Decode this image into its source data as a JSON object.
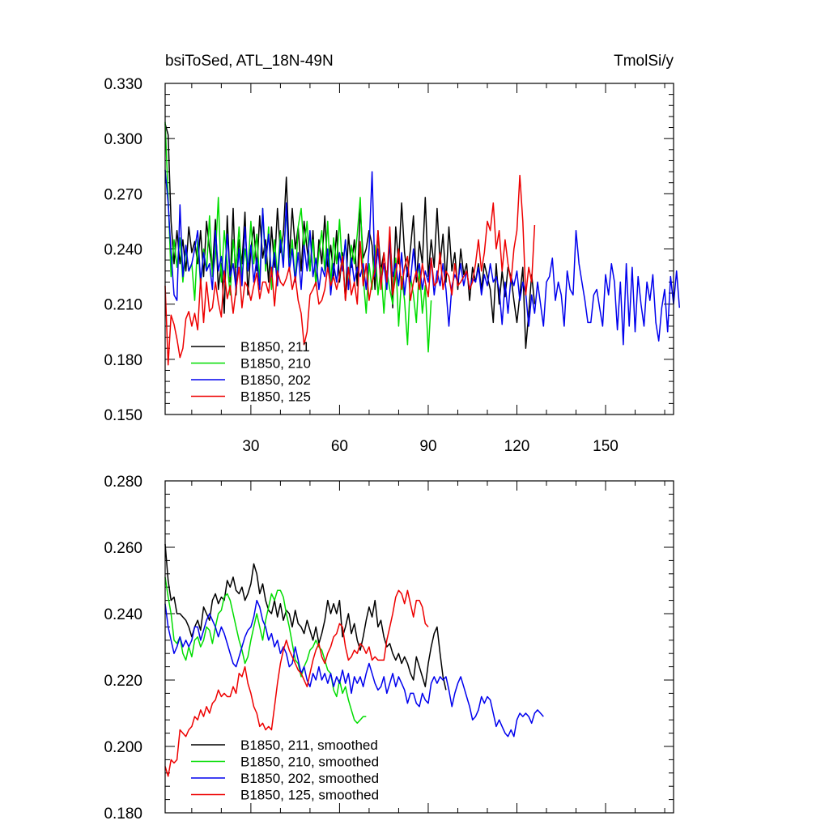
{
  "chart_data": [
    {
      "type": "line",
      "panel": "top",
      "title_left": "bsiToSed, ATL_18N-49N",
      "title_right": "TmolSi/y",
      "xlim": [
        1,
        173
      ],
      "ylim": [
        0.15,
        0.33
      ],
      "x_tick_labels": [
        "30",
        "60",
        "90",
        "120",
        "150"
      ],
      "x_ticks": [
        30,
        60,
        90,
        120,
        150
      ],
      "y_tick_labels": [
        "0.150",
        "0.180",
        "0.210",
        "0.240",
        "0.270",
        "0.300",
        "0.330"
      ],
      "y_ticks": [
        0.15,
        0.18,
        0.21,
        0.24,
        0.27,
        0.3,
        0.33
      ],
      "legend_position": "bottom-left",
      "series": [
        {
          "name": "B1850, 211",
          "color": "#000000",
          "values": [
            0.308,
            0.302,
            0.255,
            0.232,
            0.25,
            0.232,
            0.245,
            0.228,
            0.252,
            0.238,
            0.244,
            0.232,
            0.25,
            0.225,
            0.255,
            0.24,
            0.228,
            0.256,
            0.218,
            0.232,
            0.205,
            0.258,
            0.222,
            0.262,
            0.215,
            0.245,
            0.232,
            0.26,
            0.215,
            0.24,
            0.252,
            0.228,
            0.258,
            0.235,
            0.245,
            0.222,
            0.252,
            0.23,
            0.262,
            0.238,
            0.248,
            0.279,
            0.235,
            0.262,
            0.24,
            0.252,
            0.228,
            0.255,
            0.24,
            0.228,
            0.25,
            0.22,
            0.245,
            0.232,
            0.258,
            0.228,
            0.242,
            0.225,
            0.25,
            0.222,
            0.238,
            0.212,
            0.248,
            0.23,
            0.245,
            0.22,
            0.262,
            0.235,
            0.24,
            0.25,
            0.242,
            0.218,
            0.25,
            0.228,
            0.238,
            0.222,
            0.245,
            0.208,
            0.252,
            0.232,
            0.265,
            0.238,
            0.225,
            0.24,
            0.258,
            0.222,
            0.244,
            0.232,
            0.268,
            0.225,
            0.245,
            0.23,
            0.262,
            0.232,
            0.248,
            0.222,
            0.252,
            0.228,
            0.238,
            0.218,
            0.24,
            0.226,
            0.232,
            0.212,
            0.23,
            0.222,
            0.232,
            0.218,
            0.232,
            0.225,
            0.218,
            0.2,
            0.232,
            0.21,
            0.228,
            0.214,
            0.23,
            0.225,
            0.212,
            0.2,
            0.215,
            0.23,
            0.186,
            0.205,
            0.226,
            0.21
          ]
        },
        {
          "name": "B1850, 210",
          "color": "#00dd00",
          "values": [
            0.309,
            0.268,
            0.225,
            0.245,
            0.23,
            0.246,
            0.222,
            0.24,
            0.228,
            0.232,
            0.212,
            0.245,
            0.22,
            0.24,
            0.228,
            0.258,
            0.225,
            0.236,
            0.268,
            0.222,
            0.25,
            0.232,
            0.215,
            0.245,
            0.23,
            0.252,
            0.225,
            0.24,
            0.228,
            0.255,
            0.232,
            0.248,
            0.222,
            0.262,
            0.228,
            0.252,
            0.218,
            0.245,
            0.225,
            0.25,
            0.232,
            0.262,
            0.23,
            0.245,
            0.222,
            0.252,
            0.262,
            0.24,
            0.255,
            0.228,
            0.245,
            0.22,
            0.238,
            0.25,
            0.228,
            0.255,
            0.22,
            0.246,
            0.232,
            0.256,
            0.228,
            0.245,
            0.218,
            0.242,
            0.232,
            0.248,
            0.268,
            0.225,
            0.205,
            0.232,
            0.218,
            0.242,
            0.215,
            0.23,
            0.205,
            0.228,
            0.218,
            0.21,
            0.235,
            0.198,
            0.225,
            0.212,
            0.188,
            0.225,
            0.215,
            0.2,
            0.23,
            0.205,
            0.22,
            0.184,
            0.212
          ]
        },
        {
          "name": "B1850, 202",
          "color": "#0000ee",
          "values": [
            0.283,
            0.265,
            0.238,
            0.215,
            0.212,
            0.264,
            0.225,
            0.242,
            0.228,
            0.232,
            0.24,
            0.25,
            0.222,
            0.238,
            0.228,
            0.232,
            0.218,
            0.25,
            0.228,
            0.236,
            0.222,
            0.248,
            0.225,
            0.232,
            0.218,
            0.24,
            0.22,
            0.252,
            0.228,
            0.242,
            0.222,
            0.235,
            0.218,
            0.262,
            0.232,
            0.248,
            0.225,
            0.238,
            0.22,
            0.245,
            0.23,
            0.265,
            0.228,
            0.24,
            0.222,
            0.238,
            0.218,
            0.242,
            0.228,
            0.25,
            0.225,
            0.235,
            0.218,
            0.23,
            0.225,
            0.24,
            0.215,
            0.232,
            0.222,
            0.238,
            0.228,
            0.245,
            0.218,
            0.235,
            0.222,
            0.23,
            0.225,
            0.232,
            0.218,
            0.24,
            0.282,
            0.225,
            0.24,
            0.222,
            0.232,
            0.218,
            0.245,
            0.225,
            0.232,
            0.22,
            0.238,
            0.215,
            0.23,
            0.222,
            0.24,
            0.225,
            0.232,
            0.218,
            0.228,
            0.222,
            0.235,
            0.215,
            0.228,
            0.22,
            0.232,
            0.218,
            0.198,
            0.22,
            0.226,
            0.222,
            0.232,
            0.22,
            0.228,
            0.218,
            0.224,
            0.222,
            0.23,
            0.215,
            0.226,
            0.22,
            0.232,
            0.222,
            0.225,
            0.218,
            0.199,
            0.222,
            0.205,
            0.225,
            0.22,
            0.228,
            0.212,
            0.222,
            0.216,
            0.198,
            0.215,
            0.205,
            0.222,
            0.21,
            0.198,
            0.222,
            0.225,
            0.235,
            0.212,
            0.222,
            0.215,
            0.198,
            0.228,
            0.218,
            0.215,
            0.25,
            0.232,
            0.222,
            0.212,
            0.2,
            0.2,
            0.215,
            0.218,
            0.208,
            0.198,
            0.226,
            0.215,
            0.232,
            0.222,
            0.196,
            0.222,
            0.188,
            0.232,
            0.198,
            0.23,
            0.195,
            0.225,
            0.21,
            0.198,
            0.222,
            0.212,
            0.226,
            0.2,
            0.19,
            0.208,
            0.218,
            0.195,
            0.225,
            0.21,
            0.228,
            0.208
          ]
        },
        {
          "name": "B1850, 125",
          "color": "#ee0000",
          "values": [
            0.22,
            0.177,
            0.204,
            0.199,
            0.191,
            0.181,
            0.186,
            0.202,
            0.206,
            0.198,
            0.205,
            0.196,
            0.224,
            0.2,
            0.222,
            0.206,
            0.208,
            0.222,
            0.211,
            0.203,
            0.228,
            0.213,
            0.22,
            0.205,
            0.218,
            0.23,
            0.208,
            0.222,
            0.219,
            0.212,
            0.22,
            0.227,
            0.213,
            0.222,
            0.222,
            0.216,
            0.23,
            0.209,
            0.228,
            0.222,
            0.22,
            0.224,
            0.23,
            0.218,
            0.225,
            0.212,
            0.205,
            0.188,
            0.195,
            0.215,
            0.218,
            0.222,
            0.21,
            0.212,
            0.218,
            0.23,
            0.22,
            0.225,
            0.218,
            0.225,
            0.236,
            0.212,
            0.23,
            0.215,
            0.222,
            0.21,
            0.244,
            0.22,
            0.232,
            0.212,
            0.222,
            0.228,
            0.25,
            0.218,
            0.238,
            0.222,
            0.252,
            0.215,
            0.225,
            0.24,
            0.218,
            0.23,
            0.236,
            0.212,
            0.222,
            0.228,
            0.218,
            0.232,
            0.222,
            0.214,
            0.235,
            0.22,
            0.222,
            0.238,
            0.218,
            0.228,
            0.225,
            0.215,
            0.232,
            0.22,
            0.222,
            0.225,
            0.228,
            0.218,
            0.222,
            0.232,
            0.245,
            0.228,
            0.238,
            0.255,
            0.25,
            0.265,
            0.24,
            0.25,
            0.228,
            0.245,
            0.232,
            0.222,
            0.24,
            0.25,
            0.28,
            0.255,
            0.215,
            0.23,
            0.222,
            0.253
          ]
        }
      ]
    },
    {
      "type": "line",
      "panel": "bottom",
      "xlim": [
        1,
        173
      ],
      "ylim": [
        0.18,
        0.28
      ],
      "x_ticks": [
        30,
        60,
        90,
        120,
        150
      ],
      "y_tick_labels": [
        "0.180",
        "0.200",
        "0.220",
        "0.240",
        "0.260",
        "0.280"
      ],
      "y_ticks": [
        0.18,
        0.2,
        0.22,
        0.24,
        0.26,
        0.28
      ],
      "legend_position": "bottom-left",
      "series": [
        {
          "name": "B1850, 211, smoothed",
          "color": "#000000",
          "values": [
            0.261,
            0.25,
            0.244,
            0.245,
            0.24,
            0.24,
            0.239,
            0.238,
            0.236,
            0.233,
            0.236,
            0.238,
            0.235,
            0.242,
            0.24,
            0.238,
            0.244,
            0.246,
            0.243,
            0.245,
            0.244,
            0.25,
            0.248,
            0.251,
            0.247,
            0.246,
            0.248,
            0.244,
            0.246,
            0.249,
            0.255,
            0.252,
            0.246,
            0.249,
            0.244,
            0.241,
            0.24,
            0.244,
            0.239,
            0.243,
            0.238,
            0.241,
            0.24,
            0.236,
            0.241,
            0.237,
            0.236,
            0.234,
            0.238,
            0.235,
            0.232,
            0.236,
            0.231,
            0.234,
            0.238,
            0.244,
            0.24,
            0.243,
            0.24,
            0.244,
            0.233,
            0.236,
            0.24,
            0.234,
            0.237,
            0.232,
            0.229,
            0.233,
            0.238,
            0.242,
            0.239,
            0.244,
            0.236,
            0.238,
            0.233,
            0.23,
            0.231,
            0.228,
            0.226,
            0.228,
            0.225,
            0.227,
            0.225,
            0.222,
            0.22,
            0.227,
            0.224,
            0.221,
            0.218,
            0.225,
            0.23,
            0.234,
            0.236,
            0.228,
            0.221,
            0.217
          ]
        },
        {
          "name": "B1850, 210, smoothed",
          "color": "#00dd00",
          "values": [
            0.251,
            0.245,
            0.24,
            0.232,
            0.231,
            0.233,
            0.228,
            0.226,
            0.23,
            0.227,
            0.232,
            0.233,
            0.23,
            0.232,
            0.236,
            0.235,
            0.231,
            0.236,
            0.24,
            0.241,
            0.245,
            0.246,
            0.244,
            0.24,
            0.236,
            0.232,
            0.229,
            0.225,
            0.227,
            0.232,
            0.236,
            0.24,
            0.236,
            0.232,
            0.238,
            0.242,
            0.246,
            0.244,
            0.247,
            0.247,
            0.245,
            0.24,
            0.236,
            0.231,
            0.226,
            0.225,
            0.221,
            0.224,
            0.226,
            0.229,
            0.23,
            0.232,
            0.23,
            0.229,
            0.226,
            0.223,
            0.222,
            0.217,
            0.215,
            0.22,
            0.216,
            0.218,
            0.214,
            0.211,
            0.208,
            0.207,
            0.208,
            0.209,
            0.209
          ]
        },
        {
          "name": "B1850, 202, smoothed",
          "color": "#0000ee",
          "values": [
            0.243,
            0.236,
            0.232,
            0.228,
            0.23,
            0.233,
            0.23,
            0.232,
            0.23,
            0.232,
            0.236,
            0.236,
            0.232,
            0.235,
            0.238,
            0.24,
            0.238,
            0.236,
            0.233,
            0.236,
            0.234,
            0.231,
            0.228,
            0.225,
            0.224,
            0.227,
            0.23,
            0.233,
            0.235,
            0.236,
            0.239,
            0.244,
            0.242,
            0.238,
            0.236,
            0.232,
            0.234,
            0.23,
            0.232,
            0.228,
            0.23,
            0.228,
            0.224,
            0.225,
            0.23,
            0.226,
            0.222,
            0.224,
            0.22,
            0.218,
            0.222,
            0.22,
            0.224,
            0.22,
            0.222,
            0.219,
            0.222,
            0.218,
            0.221,
            0.219,
            0.223,
            0.219,
            0.222,
            0.216,
            0.221,
            0.219,
            0.221,
            0.218,
            0.222,
            0.225,
            0.222,
            0.219,
            0.217,
            0.218,
            0.221,
            0.216,
            0.219,
            0.222,
            0.218,
            0.221,
            0.219,
            0.217,
            0.213,
            0.216,
            0.216,
            0.213,
            0.212,
            0.216,
            0.214,
            0.213,
            0.219,
            0.221,
            0.219,
            0.221,
            0.22,
            0.221,
            0.217,
            0.212,
            0.216,
            0.219,
            0.221,
            0.218,
            0.215,
            0.212,
            0.208,
            0.209,
            0.211,
            0.215,
            0.213,
            0.215,
            0.214,
            0.21,
            0.206,
            0.208,
            0.206,
            0.204,
            0.203,
            0.205,
            0.203,
            0.208,
            0.21,
            0.209,
            0.21,
            0.209,
            0.207,
            0.21,
            0.211,
            0.21,
            0.209
          ]
        },
        {
          "name": "B1850, 125, smoothed",
          "color": "#ee0000",
          "values": [
            0.194,
            0.191,
            0.196,
            0.195,
            0.196,
            0.205,
            0.204,
            0.203,
            0.205,
            0.206,
            0.209,
            0.208,
            0.211,
            0.209,
            0.212,
            0.21,
            0.213,
            0.214,
            0.217,
            0.215,
            0.216,
            0.215,
            0.215,
            0.218,
            0.216,
            0.222,
            0.221,
            0.224,
            0.219,
            0.216,
            0.212,
            0.21,
            0.206,
            0.207,
            0.205,
            0.206,
            0.205,
            0.212,
            0.219,
            0.225,
            0.229,
            0.232,
            0.229,
            0.227,
            0.225,
            0.223,
            0.222,
            0.22,
            0.218,
            0.222,
            0.226,
            0.229,
            0.231,
            0.227,
            0.225,
            0.228,
            0.23,
            0.233,
            0.234,
            0.237,
            0.236,
            0.23,
            0.226,
            0.227,
            0.229,
            0.228,
            0.231,
            0.23,
            0.228,
            0.23,
            0.226,
            0.227,
            0.226,
            0.226,
            0.226,
            0.232,
            0.236,
            0.24,
            0.245,
            0.247,
            0.246,
            0.243,
            0.247,
            0.243,
            0.239,
            0.244,
            0.244,
            0.242,
            0.237,
            0.236
          ]
        }
      ]
    }
  ]
}
